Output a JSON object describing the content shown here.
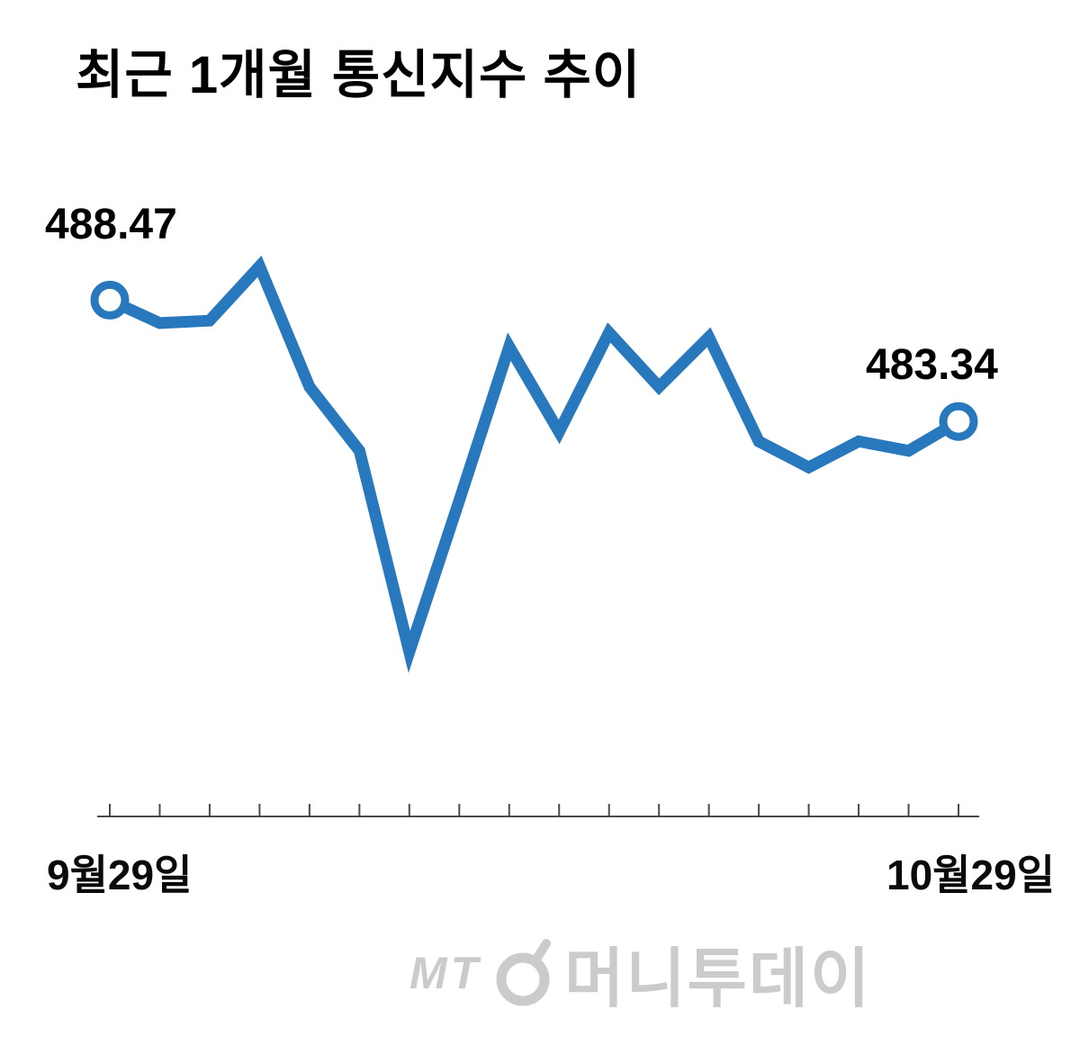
{
  "title": "최근 1개월 통신지수 추이",
  "chart_data": {
    "type": "line",
    "title": "최근 1개월 통신지수 추이",
    "series": [
      {
        "name": "통신지수",
        "values": [
          488.47,
          487.5,
          487.6,
          489.9,
          484.8,
          482.1,
          473.6,
          480.0,
          486.5,
          482.9,
          487.1,
          484.8,
          486.9,
          482.5,
          481.4,
          482.5,
          482.1,
          483.34
        ]
      }
    ],
    "x_axis": {
      "start_label": "9월29일",
      "end_label": "10월29일",
      "tick_count": 18
    },
    "y_range": [
      473.0,
      490.5
    ],
    "start_point": {
      "label": "488.47",
      "value": 488.47
    },
    "end_point": {
      "label": "483.34",
      "value": 483.34
    },
    "line_color": "#2878bd",
    "grid": false,
    "legend": false
  },
  "watermark": {
    "prefix": "MT",
    "logo": "moneytoday-circle-logo",
    "text": "머니투데이",
    "color": "#cbcbcb"
  }
}
